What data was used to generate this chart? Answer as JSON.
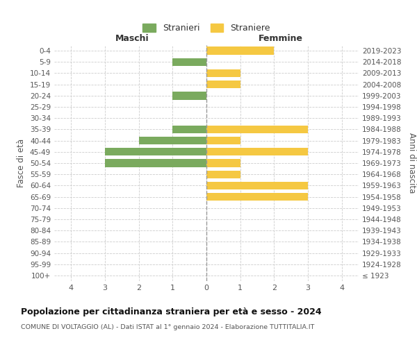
{
  "age_groups": [
    "100+",
    "95-99",
    "90-94",
    "85-89",
    "80-84",
    "75-79",
    "70-74",
    "65-69",
    "60-64",
    "55-59",
    "50-54",
    "45-49",
    "40-44",
    "35-39",
    "30-34",
    "25-29",
    "20-24",
    "15-19",
    "10-14",
    "5-9",
    "0-4"
  ],
  "birth_years": [
    "≤ 1923",
    "1924-1928",
    "1929-1933",
    "1934-1938",
    "1939-1943",
    "1944-1948",
    "1949-1953",
    "1954-1958",
    "1959-1963",
    "1964-1968",
    "1969-1973",
    "1974-1978",
    "1979-1983",
    "1984-1988",
    "1989-1993",
    "1994-1998",
    "1999-2003",
    "2004-2008",
    "2009-2013",
    "2014-2018",
    "2019-2023"
  ],
  "males": [
    0,
    0,
    0,
    0,
    0,
    0,
    0,
    0,
    0,
    0,
    3,
    3,
    2,
    1,
    0,
    0,
    1,
    0,
    0,
    1,
    0
  ],
  "females": [
    0,
    0,
    0,
    0,
    0,
    0,
    0,
    3,
    3,
    1,
    1,
    3,
    1,
    3,
    0,
    0,
    0,
    1,
    1,
    0,
    2
  ],
  "male_color": "#7aaa5e",
  "female_color": "#f5c842",
  "xlim": 4.5,
  "title": "Popolazione per cittadinanza straniera per età e sesso - 2024",
  "subtitle": "COMUNE DI VOLTAGGIO (AL) - Dati ISTAT al 1° gennaio 2024 - Elaborazione TUTTITALIA.IT",
  "legend_male": "Stranieri",
  "legend_female": "Straniere",
  "left_header": "Maschi",
  "right_header": "Femmine",
  "left_axis_label": "Fasce di età",
  "right_axis_label": "Anni di nascita",
  "background_color": "#ffffff",
  "grid_color": "#cccccc",
  "xtick_positions": [
    -4,
    -3,
    -2,
    -1,
    0,
    1,
    2,
    3,
    4
  ],
  "xtick_labels": [
    "4",
    "3",
    "2",
    "1",
    "0",
    "1",
    "2",
    "3",
    "4"
  ]
}
